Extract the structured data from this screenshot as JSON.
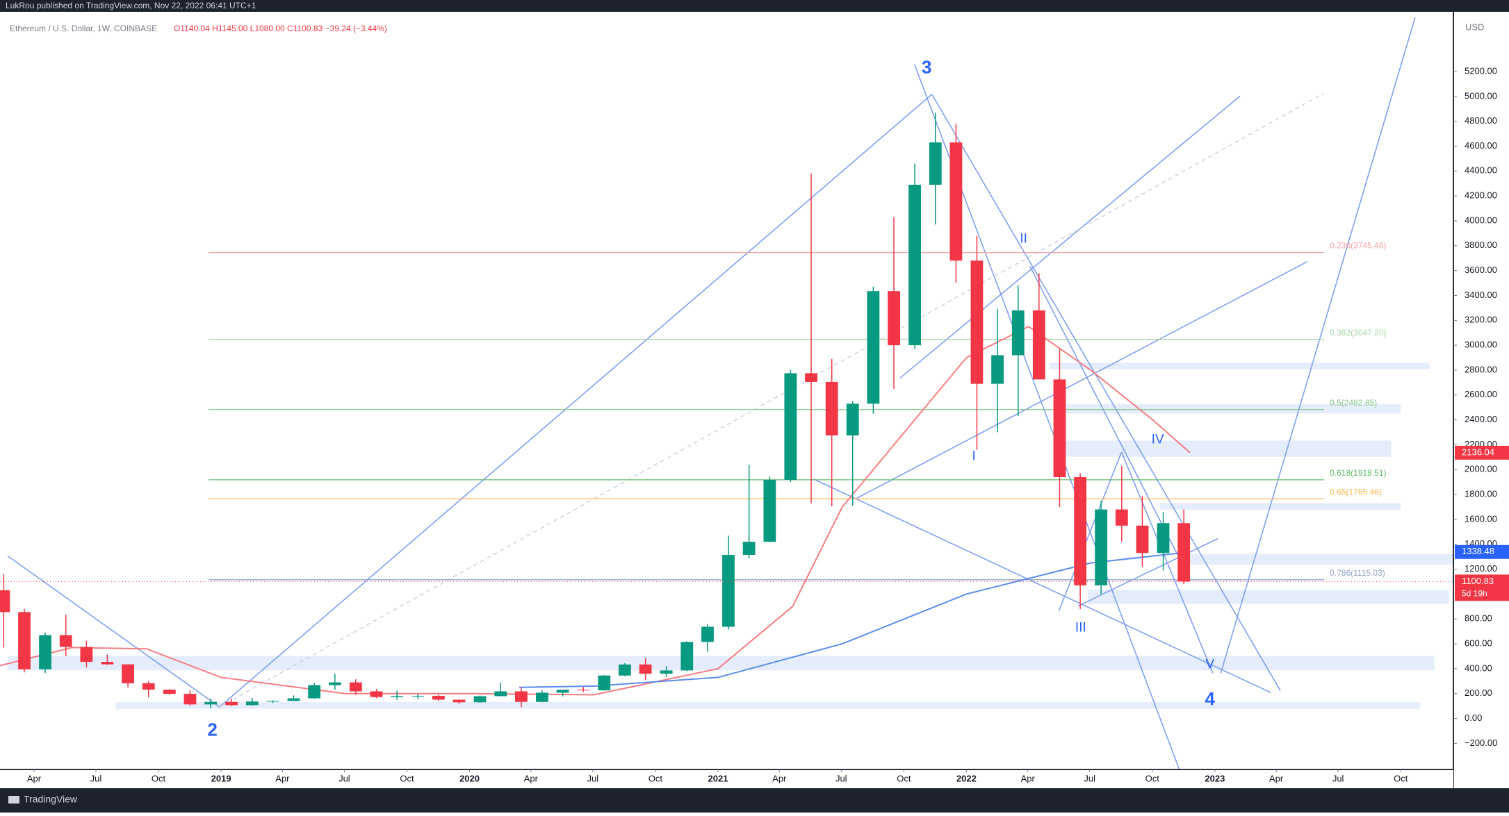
{
  "header": {
    "publisher": "LukRou published on TradingView.com, Nov 22, 2022 06:41 UTC+1",
    "symbol": "Ethereum / U.S. Dollar, 1W, COINBASE",
    "ohlc_text": "O1140.04 H1145.00 L1080.00 C1100.83 −39.24 (−3.44%)"
  },
  "footer": {
    "brand": "TradingView"
  },
  "chart_data": {
    "type": "candlestick",
    "currency": "USD",
    "x": [
      2018.125,
      2018.208,
      2018.292,
      2018.375,
      2018.458,
      2018.542,
      2018.625,
      2018.708,
      2018.792,
      2018.875,
      2018.958,
      2019.042,
      2019.125,
      2019.208,
      2019.292,
      2019.375,
      2019.458,
      2019.542,
      2019.625,
      2019.708,
      2019.792,
      2019.875,
      2019.958,
      2020.042,
      2020.125,
      2020.208,
      2020.292,
      2020.375,
      2020.458,
      2020.542,
      2020.625,
      2020.708,
      2020.792,
      2020.875,
      2020.958,
      2021.042,
      2021.125,
      2021.208,
      2021.292,
      2021.375,
      2021.458,
      2021.542,
      2021.625,
      2021.708,
      2021.792,
      2021.875,
      2021.958,
      2022.042,
      2022.125,
      2022.208,
      2022.292,
      2022.375,
      2022.458,
      2022.542,
      2022.625,
      2022.708,
      2022.792,
      2022.875
    ],
    "ohlc": [
      [
        1030,
        1160,
        570,
        855
      ],
      [
        855,
        880,
        370,
        395
      ],
      [
        395,
        690,
        365,
        670
      ],
      [
        670,
        835,
        500,
        575
      ],
      [
        575,
        625,
        410,
        455
      ],
      [
        455,
        515,
        430,
        435
      ],
      [
        435,
        435,
        250,
        283
      ],
      [
        283,
        300,
        170,
        232
      ],
      [
        232,
        235,
        190,
        198
      ],
      [
        198,
        225,
        105,
        113
      ],
      [
        113,
        160,
        82,
        133
      ],
      [
        133,
        160,
        100,
        107
      ],
      [
        107,
        165,
        102,
        136
      ],
      [
        136,
        145,
        125,
        141
      ],
      [
        141,
        185,
        140,
        162
      ],
      [
        162,
        285,
        158,
        268
      ],
      [
        268,
        360,
        230,
        290
      ],
      [
        290,
        315,
        190,
        218
      ],
      [
        218,
        238,
        162,
        172
      ],
      [
        172,
        225,
        150,
        180
      ],
      [
        180,
        200,
        155,
        182
      ],
      [
        182,
        190,
        140,
        151
      ],
      [
        151,
        152,
        117,
        130
      ],
      [
        130,
        185,
        126,
        179
      ],
      [
        179,
        288,
        178,
        218
      ],
      [
        218,
        253,
        90,
        133
      ],
      [
        133,
        227,
        130,
        207
      ],
      [
        207,
        220,
        177,
        231
      ],
      [
        231,
        253,
        214,
        226
      ],
      [
        226,
        350,
        224,
        345
      ],
      [
        345,
        445,
        340,
        434
      ],
      [
        434,
        488,
        308,
        360
      ],
      [
        360,
        420,
        335,
        386
      ],
      [
        386,
        620,
        380,
        615
      ],
      [
        615,
        760,
        535,
        737
      ],
      [
        737,
        1470,
        715,
        1315
      ],
      [
        1315,
        2040,
        1290,
        1420
      ],
      [
        1420,
        1945,
        1430,
        1918
      ],
      [
        1918,
        2800,
        1900,
        2775
      ],
      [
        2775,
        4380,
        1730,
        2705
      ],
      [
        2705,
        2890,
        1705,
        2275
      ],
      [
        2275,
        2550,
        1710,
        2530
      ],
      [
        2530,
        3470,
        2450,
        3435
      ],
      [
        3435,
        4030,
        2650,
        3000
      ],
      [
        3000,
        4460,
        2970,
        4290
      ],
      [
        4290,
        4870,
        3970,
        4630
      ],
      [
        4630,
        4780,
        3500,
        3680
      ],
      [
        3680,
        3880,
        2160,
        2690
      ],
      [
        2690,
        3290,
        2300,
        2920
      ],
      [
        2920,
        3480,
        2430,
        3280
      ],
      [
        3280,
        3580,
        2760,
        2725
      ],
      [
        2725,
        2970,
        1700,
        1940
      ],
      [
        1940,
        1970,
        880,
        1070
      ],
      [
        1070,
        1750,
        1000,
        1680
      ],
      [
        1680,
        2030,
        1420,
        1550
      ],
      [
        1550,
        1790,
        1220,
        1330
      ],
      [
        1330,
        1660,
        1190,
        1570
      ],
      [
        1570,
        1680,
        1080,
        1100.83
      ]
    ],
    "up_color": "#089981",
    "down_color": "#f23645",
    "moving_averages": [
      {
        "color": "#f77c80",
        "x": [
          2018.1,
          2018.4,
          2018.7,
          2019.0,
          2019.5,
          2020.0,
          2020.5,
          2021.0,
          2021.3,
          2021.5,
          2021.75,
          2022.0,
          2022.25,
          2022.5,
          2022.75,
          2022.9
        ],
        "values": [
          420,
          570,
          560,
          330,
          200,
          200,
          190,
          400,
          900,
          1700,
          2300,
          2900,
          3150,
          2800,
          2400,
          2136.04
        ]
      },
      {
        "color": "#5b8def",
        "x": [
          2020.2,
          2020.5,
          2021.0,
          2021.5,
          2022.0,
          2022.5,
          2022.9
        ],
        "values": [
          250,
          260,
          330,
          600,
          1000,
          1250,
          1338.48
        ]
      }
    ],
    "fib_levels": [
      {
        "value": 3745.46,
        "label": "0.236(3745.46)",
        "color": "#f7a4a4"
      },
      {
        "value": 3047.2,
        "label": "0.382(3047.20)",
        "color": "#a5d6a7"
      },
      {
        "value": 2482.85,
        "label": "0.5(2482.85)",
        "color": "#81c784"
      },
      {
        "value": 1918.51,
        "label": "0.618(1918.51)",
        "color": "#66bb6a"
      },
      {
        "value": 1765.46,
        "label": "0.65(1765.46)",
        "color": "#ffb74d"
      },
      {
        "value": 1115.03,
        "label": "0.786(1115.03)",
        "color": "#90a4c4"
      }
    ],
    "fib_x": [
      2018.95,
      2023.44
    ],
    "wave_labels_major": [
      {
        "text": "3",
        "x": 2021.84,
        "y": 5224
      },
      {
        "text": "2",
        "x": 2018.965,
        "y": -101
      },
      {
        "text": "4",
        "x": 2022.98,
        "y": 148
      }
    ],
    "wave_labels": [
      {
        "text": "II",
        "x": 2022.23,
        "y": 3852
      },
      {
        "text": "I",
        "x": 2022.03,
        "y": 2105
      },
      {
        "text": "III",
        "x": 2022.46,
        "y": 725
      },
      {
        "text": "IV",
        "x": 2022.77,
        "y": 2238
      },
      {
        "text": "V",
        "x": 2022.98,
        "y": 429
      }
    ],
    "wave_color": "#2962ff",
    "price_tags": [
      {
        "value": 2136.04,
        "color": "#f23645"
      },
      {
        "value": 1338.48,
        "color": "#2962ff"
      },
      {
        "value": 1100.83,
        "color": "#f23645"
      }
    ],
    "countdown": "5d 19h",
    "xlim": [
      2018.11,
      2023.96
    ],
    "ylim": [
      -410,
      5680
    ],
    "yticks": [
      {
        "value": -200,
        "label": "−200.00"
      },
      {
        "value": 0,
        "label": "0.00"
      },
      {
        "value": 200,
        "label": "200.00"
      },
      {
        "value": 400,
        "label": "400.00"
      },
      {
        "value": 600,
        "label": "600.00"
      },
      {
        "value": 800,
        "label": "800.00"
      },
      {
        "value": 1000,
        "label": "1000.00"
      },
      {
        "value": 1200,
        "label": "1200.00"
      },
      {
        "value": 1400,
        "label": "1400.00"
      },
      {
        "value": 1600,
        "label": "1600.00"
      },
      {
        "value": 1800,
        "label": "1800.00"
      },
      {
        "value": 2000,
        "label": "2000.00"
      },
      {
        "value": 2200,
        "label": "2200.00"
      },
      {
        "value": 2400,
        "label": "2400.00"
      },
      {
        "value": 2600,
        "label": "2600.00"
      },
      {
        "value": 2800,
        "label": "2800.00"
      },
      {
        "value": 3000,
        "label": "3000.00"
      },
      {
        "value": 3200,
        "label": "3200.00"
      },
      {
        "value": 3400,
        "label": "3400.00"
      },
      {
        "value": 3600,
        "label": "3600.00"
      },
      {
        "value": 3800,
        "label": "3800.00"
      },
      {
        "value": 4000,
        "label": "4000.00"
      },
      {
        "value": 4200,
        "label": "4200.00"
      },
      {
        "value": 4400,
        "label": "4400.00"
      },
      {
        "value": 4600,
        "label": "4600.00"
      },
      {
        "value": 4800,
        "label": "4800.00"
      },
      {
        "value": 5000,
        "label": "5000.00"
      },
      {
        "value": 5200,
        "label": "5200.00"
      }
    ],
    "xticks": [
      {
        "value": 2018.247,
        "label": "Apr"
      },
      {
        "value": 2018.496,
        "label": "Jul"
      },
      {
        "value": 2018.748,
        "label": "Oct"
      },
      {
        "value": 2019,
        "label": "2019"
      },
      {
        "value": 2019.247,
        "label": "Apr"
      },
      {
        "value": 2019.496,
        "label": "Jul"
      },
      {
        "value": 2019.748,
        "label": "Oct"
      },
      {
        "value": 2020,
        "label": "2020"
      },
      {
        "value": 2020.247,
        "label": "Apr"
      },
      {
        "value": 2020.496,
        "label": "Jul"
      },
      {
        "value": 2020.748,
        "label": "Oct"
      },
      {
        "value": 2021,
        "label": "2021"
      },
      {
        "value": 2021.247,
        "label": "Apr"
      },
      {
        "value": 2021.496,
        "label": "Jul"
      },
      {
        "value": 2021.748,
        "label": "Oct"
      },
      {
        "value": 2022,
        "label": "2022"
      },
      {
        "value": 2022.247,
        "label": "Apr"
      },
      {
        "value": 2022.496,
        "label": "Jul"
      },
      {
        "value": 2022.748,
        "label": "Oct"
      },
      {
        "value": 2023,
        "label": "2023"
      },
      {
        "value": 2023.247,
        "label": "Apr"
      },
      {
        "value": 2023.496,
        "label": "Jul"
      },
      {
        "value": 2023.748,
        "label": "Oct"
      }
    ]
  }
}
